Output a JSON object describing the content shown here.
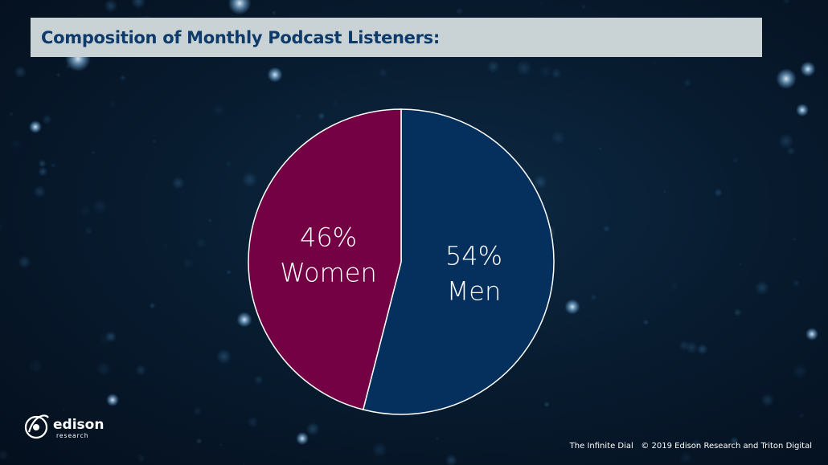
{
  "header": {
    "title": "Composition of Monthly Podcast Listeners:"
  },
  "colors": {
    "men": "#05305e",
    "women": "#740144",
    "title_text": "#0f3b6b",
    "title_bg": "#c9d3d6"
  },
  "chart_data": {
    "type": "pie",
    "title": "",
    "slices": [
      {
        "label": "Men",
        "value": 54,
        "value_label": "54%",
        "color": "#05305e"
      },
      {
        "label": "Women",
        "value": 46,
        "value_label": "46%",
        "color": "#740144"
      }
    ]
  },
  "branding": {
    "logo_word": "edison",
    "logo_sub": "research"
  },
  "footer": {
    "source": "The Infinite Dial",
    "copyright": "© 2019 Edison Research and Triton Digital"
  }
}
